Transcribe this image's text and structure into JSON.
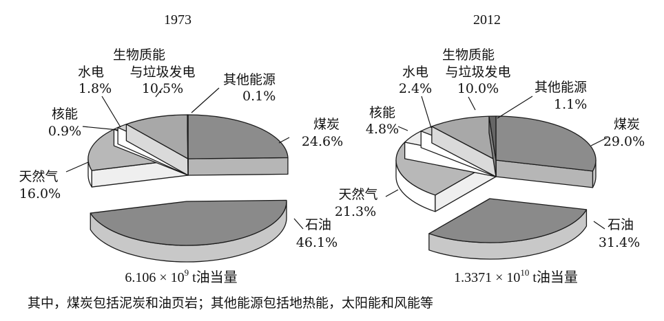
{
  "chart_data": [
    {
      "type": "pie",
      "title": "1973",
      "total": "6.106 × 10⁹ t油当量",
      "categories": [
        "煤炭",
        "石油",
        "天然气",
        "核能",
        "水电",
        "生物质能与垃圾发电",
        "其他能源"
      ],
      "values": [
        24.6,
        46.1,
        16.0,
        0.9,
        1.8,
        10.5,
        0.1
      ],
      "slices": [
        {
          "name": "煤炭",
          "value": 24.6,
          "value_label": "24.6%",
          "color": "#8c8c8c",
          "exploded": false
        },
        {
          "name": "石油",
          "value": 46.1,
          "value_label": "46.1%",
          "color": "#8a8a8a",
          "exploded": true
        },
        {
          "name": "天然气",
          "value": 16.0,
          "value_label": "16.0%",
          "color": "#b8b8b8",
          "exploded": false
        },
        {
          "name": "核能",
          "value": 0.9,
          "value_label": "0.9%",
          "color": "#ededed",
          "exploded": false
        },
        {
          "name": "水电",
          "value": 1.8,
          "value_label": "1.8%",
          "color": "#d2d2d2",
          "exploded": false
        },
        {
          "name": "生物质能与垃圾发电",
          "value": 10.5,
          "value_label": "10.5%",
          "color": "#a8a8a8",
          "exploded": false
        },
        {
          "name": "其他能源",
          "value": 0.1,
          "value_label": "0.1%",
          "color": "#666666",
          "exploded": false
        }
      ]
    },
    {
      "type": "pie",
      "title": "2012",
      "total": "1.3371 × 10¹⁰ t油当量",
      "categories": [
        "煤炭",
        "石油",
        "天然气",
        "核能",
        "水电",
        "生物质能与垃圾发电",
        "其他能源"
      ],
      "values": [
        29.0,
        31.4,
        21.3,
        4.8,
        2.4,
        10.0,
        1.1
      ],
      "slices": [
        {
          "name": "煤炭",
          "value": 29.0,
          "value_label": "29.0%",
          "color": "#8c8c8c",
          "exploded": false
        },
        {
          "name": "石油",
          "value": 31.4,
          "value_label": "31.4%",
          "color": "#8a8a8a",
          "exploded": true
        },
        {
          "name": "天然气",
          "value": 21.3,
          "value_label": "21.3%",
          "color": "#b8b8b8",
          "exploded": false
        },
        {
          "name": "核能",
          "value": 4.8,
          "value_label": "4.8%",
          "color": "#ededed",
          "exploded": false
        },
        {
          "name": "水电",
          "value": 2.4,
          "value_label": "2.4%",
          "color": "#d2d2d2",
          "exploded": false
        },
        {
          "name": "生物质能与垃圾发电",
          "value": 10.0,
          "value_label": "10.0%",
          "color": "#a8a8a8",
          "exploded": false
        },
        {
          "name": "其他能源",
          "value": 1.1,
          "value_label": "1.1%",
          "color": "#666666",
          "exploded": false
        }
      ]
    }
  ],
  "labels": {
    "c1": {
      "coal": [
        "煤炭",
        "24.6%"
      ],
      "oil": [
        "石油",
        "46.1%"
      ],
      "gas": [
        "天然气",
        "16.0%"
      ],
      "nuclear": [
        "核能",
        "0.9%"
      ],
      "hydro": [
        "水电",
        "1.8%"
      ],
      "bio": [
        "生物质能",
        "与垃圾发电",
        "10.5%"
      ],
      "other": [
        "其他能源",
        "0.1%"
      ]
    },
    "c2": {
      "coal": [
        "煤炭",
        "29.0%"
      ],
      "oil": [
        "石油",
        "31.4%"
      ],
      "gas": [
        "天然气",
        "21.3%"
      ],
      "nuclear": [
        "核能",
        "4.8%"
      ],
      "hydro": [
        "水电",
        "2.4%"
      ],
      "bio": [
        "生物质能",
        "与垃圾发电",
        "10.0%"
      ],
      "other": [
        "其他能源",
        "1.1%"
      ]
    }
  },
  "totals": {
    "c1": {
      "mantissa": "6.106 × 10",
      "exp": "9",
      "unit": " t油当量"
    },
    "c2": {
      "mantissa": "1.3371 × 10",
      "exp": "10",
      "unit": " t油当量"
    }
  },
  "note": "其中，煤炭包括泥炭和油页岩；其他能源包括地热能，太阳能和风能等"
}
